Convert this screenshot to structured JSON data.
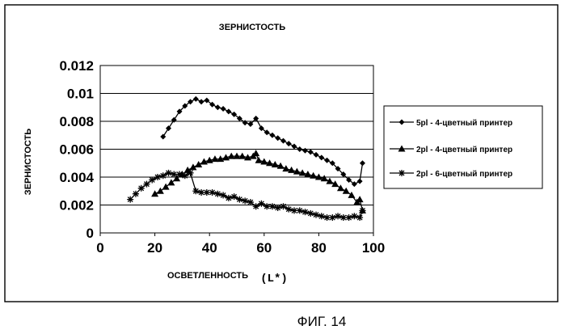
{
  "figure": {
    "caption": "ФИГ. 14"
  },
  "chart_data": {
    "type": "line",
    "title": "ЗЕРНИСТОСТЬ",
    "xlabel": "ОСВЕТЛЕННОСТЬ",
    "xlabel_unit": "(L*)",
    "ylabel": "ЗЕРНИСТОСТЬ",
    "xlim": [
      0,
      100
    ],
    "ylim": [
      0,
      0.012
    ],
    "xticks": [
      0,
      20,
      40,
      60,
      80,
      100
    ],
    "yticks": [
      0,
      0.002,
      0.004,
      0.006,
      0.008,
      0.01,
      0.012
    ],
    "ytick_labels": [
      "0",
      "0.002",
      "0.004",
      "0.006",
      "0.008",
      "0.01",
      "0.012"
    ],
    "grid": "horizontal",
    "legend_position": "right",
    "series": [
      {
        "name": "5pl - 4-цветный принтер",
        "marker": "diamond",
        "x": [
          23,
          25,
          27,
          29,
          31,
          33,
          35,
          37,
          39,
          41,
          43,
          45,
          47,
          49,
          51,
          53,
          55,
          57,
          59,
          61,
          63,
          65,
          67,
          69,
          71,
          73,
          75,
          77,
          79,
          81,
          83,
          85,
          87,
          89,
          91,
          93,
          95,
          96
        ],
        "y": [
          0.0069,
          0.0075,
          0.0081,
          0.0087,
          0.0091,
          0.0094,
          0.0096,
          0.0094,
          0.0095,
          0.0092,
          0.009,
          0.0089,
          0.0087,
          0.0085,
          0.0082,
          0.0079,
          0.0078,
          0.0082,
          0.0075,
          0.0072,
          0.007,
          0.0068,
          0.0066,
          0.0064,
          0.0062,
          0.006,
          0.0059,
          0.0058,
          0.0056,
          0.0054,
          0.0052,
          0.005,
          0.0046,
          0.0042,
          0.0038,
          0.0035,
          0.0037,
          0.005
        ]
      },
      {
        "name": "2pl - 4-цветный принтер",
        "marker": "triangle",
        "x": [
          20,
          22,
          24,
          26,
          28,
          30,
          32,
          34,
          36,
          38,
          40,
          42,
          44,
          46,
          48,
          50,
          52,
          54,
          56,
          57,
          58,
          60,
          62,
          64,
          66,
          68,
          70,
          72,
          74,
          76,
          78,
          80,
          82,
          84,
          86,
          88,
          90,
          92,
          94,
          95,
          96
        ],
        "y": [
          0.0028,
          0.003,
          0.0033,
          0.0036,
          0.0039,
          0.0042,
          0.0045,
          0.0047,
          0.0049,
          0.0051,
          0.0052,
          0.0053,
          0.0053,
          0.0054,
          0.0055,
          0.0055,
          0.0055,
          0.0054,
          0.0055,
          0.0057,
          0.0052,
          0.0051,
          0.005,
          0.0049,
          0.0048,
          0.0046,
          0.0045,
          0.0044,
          0.0043,
          0.0042,
          0.0041,
          0.004,
          0.0039,
          0.0037,
          0.0035,
          0.0032,
          0.003,
          0.0027,
          0.0022,
          0.0024,
          0.0016
        ]
      },
      {
        "name": "2pl - 6-цветный принтер",
        "marker": "asterisk",
        "x": [
          11,
          13,
          15,
          17,
          19,
          21,
          23,
          25,
          27,
          29,
          31,
          33,
          35,
          37,
          39,
          41,
          43,
          45,
          47,
          49,
          51,
          53,
          55,
          57,
          59,
          61,
          63,
          65,
          67,
          69,
          71,
          73,
          75,
          77,
          79,
          81,
          83,
          85,
          87,
          89,
          91,
          93,
          95,
          96
        ],
        "y": [
          0.0024,
          0.0028,
          0.0032,
          0.0035,
          0.0038,
          0.004,
          0.0041,
          0.0043,
          0.0042,
          0.0042,
          0.0041,
          0.0043,
          0.003,
          0.0029,
          0.0029,
          0.0029,
          0.0028,
          0.0027,
          0.0025,
          0.0026,
          0.0024,
          0.0023,
          0.0022,
          0.0019,
          0.0021,
          0.0019,
          0.0019,
          0.0018,
          0.0019,
          0.0017,
          0.0016,
          0.0016,
          0.0015,
          0.0014,
          0.0013,
          0.0012,
          0.0011,
          0.0011,
          0.0012,
          0.0011,
          0.0011,
          0.0012,
          0.0011,
          0.0016
        ]
      }
    ]
  }
}
